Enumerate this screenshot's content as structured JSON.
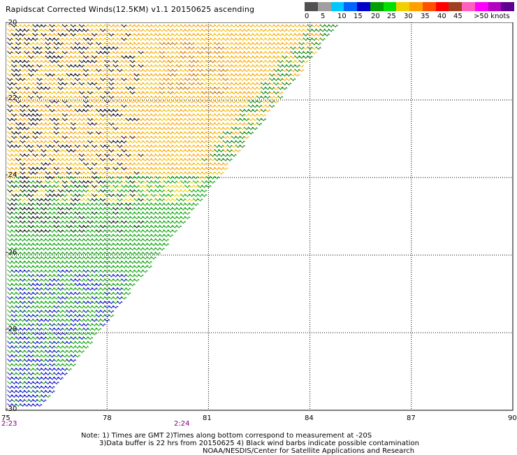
{
  "title": "Rapidscat Corrected Winds(12.5KM) v1.1 20150625 ascending",
  "legend": {
    "colors": [
      "#505050",
      "#a0a0a0",
      "#00c8ff",
      "#0064ff",
      "#0000c8",
      "#00a000",
      "#00e000",
      "#f0d000",
      "#ffa000",
      "#ff5000",
      "#ff0000",
      "#a04020",
      "#ff60c0",
      "#ff00ff",
      "#b000c0",
      "#600090"
    ],
    "labels": [
      "0",
      "5",
      "10",
      "15",
      "20",
      "25",
      "30",
      "35",
      "40",
      "45",
      ">50 knots"
    ]
  },
  "axes": {
    "x_ticks": [
      "75",
      "78",
      "81",
      "84",
      "87",
      "90"
    ],
    "y_ticks": [
      "-20",
      "-22",
      "-24",
      "-26",
      "-28",
      "-30"
    ]
  },
  "times": [
    "2:23",
    "2:24"
  ],
  "notes": [
    "Note: 1) Times are GMT 2)Times along bottom correspond to measurement at -20S",
    "3)Data buffer is 22 hrs from 20150625 4) Black wind barbs indicate possible contamination",
    "NOAA/NESDIS/Center for Satellite Applications and Research"
  ],
  "chart_data": {
    "type": "map",
    "xlim": [
      75,
      90
    ],
    "ylim": [
      -30,
      -20
    ],
    "grid": true,
    "swath_edge": [
      [
        84.8,
        -20
      ],
      [
        75.9,
        -30
      ]
    ],
    "wind_regions": [
      {
        "zone": "north",
        "speed_knots": "20-30",
        "color": "#f0c000",
        "direction": "barbs from west-southwest"
      },
      {
        "zone": "central-south",
        "speed_knots": "15-20",
        "color": "#00a000",
        "direction": "barbs from west-southwest"
      },
      {
        "zone": "southwest",
        "speed_knots": "10-15",
        "color": "#0000c8"
      },
      {
        "zone": "northwest",
        "speed_knots": "20-25",
        "color": "#000000",
        "note": "possible contamination"
      }
    ]
  }
}
